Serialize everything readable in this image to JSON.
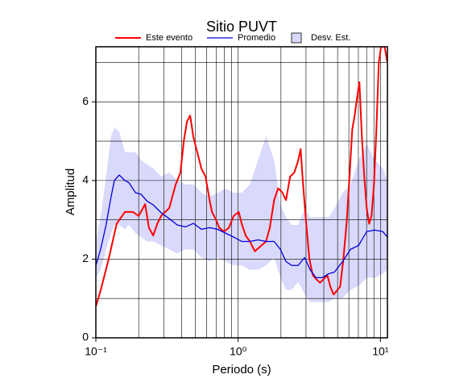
{
  "chart_data": {
    "type": "line",
    "title": "Sitio PUVT",
    "x_label": "Periodo (s)",
    "y_label": "Amplitud",
    "x_scale": "log",
    "grid": true,
    "xlim": [
      0.1,
      11.2
    ],
    "ylim": [
      0,
      7.4
    ],
    "xticks": [
      {
        "value": 0.1,
        "label": "10⁻¹"
      },
      {
        "value": 1,
        "label": "10⁰"
      },
      {
        "value": 10,
        "label": "10¹"
      }
    ],
    "minor_xticks": [
      0.2,
      0.3,
      0.4,
      0.5,
      0.6,
      0.7,
      0.8,
      0.9,
      2,
      3,
      4,
      5,
      6,
      7,
      8,
      9
    ],
    "yticks": [
      0,
      2,
      4,
      6
    ],
    "minor_yticks": [
      1,
      3,
      5,
      7
    ],
    "band": {
      "name": "Desv. Est.",
      "color": "#d9d9fb",
      "x": [
        0.1,
        0.108,
        0.118,
        0.128,
        0.135,
        0.146,
        0.16,
        0.171,
        0.19,
        0.208,
        0.228,
        0.253,
        0.288,
        0.328,
        0.373,
        0.426,
        0.485,
        0.552,
        0.63,
        0.717,
        0.817,
        0.931,
        1.06,
        1.21,
        1.38,
        1.57,
        1.79,
        1.98,
        2.17,
        2.38,
        2.64,
        2.93,
        3.21,
        3.52,
        3.91,
        4.34,
        4.75,
        5.42,
        6.17,
        7.03,
        8.01,
        9.13,
        10.4,
        11.2
      ],
      "upper": [
        2.45,
        3.07,
        4.1,
        5.13,
        5.34,
        5.24,
        4.72,
        4.72,
        4.72,
        4.52,
        4.41,
        4.31,
        4.1,
        4.21,
        4.0,
        3.9,
        3.9,
        3.69,
        3.59,
        3.69,
        3.79,
        3.69,
        3.69,
        3.9,
        4.52,
        5.13,
        4.52,
        3.38,
        3.07,
        2.87,
        2.87,
        3.28,
        3.07,
        3.07,
        3.07,
        3.07,
        3.28,
        3.69,
        3.9,
        4.52,
        4.93,
        4.52,
        4.31,
        4.0
      ],
      "lower": [
        1.53,
        1.73,
        2.25,
        2.66,
        2.87,
        2.87,
        2.76,
        2.87,
        2.66,
        2.56,
        2.45,
        2.45,
        2.35,
        2.25,
        2.14,
        2.25,
        2.25,
        2.04,
        1.94,
        2.04,
        1.94,
        1.84,
        1.84,
        1.73,
        1.73,
        1.84,
        2.04,
        1.53,
        1.22,
        1.22,
        1.42,
        1.11,
        0.91,
        0.91,
        0.91,
        0.91,
        1.01,
        1.01,
        1.22,
        1.32,
        1.53,
        1.53,
        1.63,
        1.73
      ]
    },
    "series": [
      {
        "name": "Este evento",
        "color": "#ff0000",
        "width": 2,
        "x": [
          0.1,
          0.108,
          0.123,
          0.14,
          0.16,
          0.182,
          0.2,
          0.222,
          0.236,
          0.253,
          0.27,
          0.288,
          0.328,
          0.364,
          0.393,
          0.415,
          0.437,
          0.46,
          0.485,
          0.518,
          0.552,
          0.59,
          0.63,
          0.655,
          0.699,
          0.736,
          0.796,
          0.861,
          0.931,
          1.01,
          1.06,
          1.13,
          1.21,
          1.31,
          1.41,
          1.57,
          1.67,
          1.79,
          1.91,
          2.04,
          2.17,
          2.32,
          2.48,
          2.64,
          2.75,
          2.86,
          3.01,
          3.17,
          3.34,
          3.52,
          3.76,
          4.01,
          4.23,
          4.45,
          4.69,
          4.94,
          5.21,
          5.49,
          5.78,
          6.09,
          6.34,
          6.59,
          6.85,
          7.12,
          7.41,
          7.7,
          8.01,
          8.33,
          8.66,
          9.01,
          9.37,
          9.74,
          10.1,
          10.7,
          11.2
        ],
        "values": [
          0.8,
          1.2,
          2.0,
          2.9,
          3.2,
          3.2,
          3.1,
          3.4,
          2.8,
          2.6,
          2.9,
          3.1,
          3.3,
          3.9,
          4.2,
          5.0,
          5.5,
          5.65,
          5.1,
          4.7,
          4.3,
          4.1,
          3.5,
          3.2,
          3.0,
          2.8,
          2.7,
          2.8,
          3.1,
          3.2,
          2.9,
          2.6,
          2.45,
          2.2,
          2.3,
          2.45,
          2.8,
          3.5,
          3.8,
          3.7,
          3.5,
          4.1,
          4.2,
          4.5,
          4.8,
          3.9,
          2.9,
          2.0,
          1.6,
          1.5,
          1.4,
          1.5,
          1.6,
          1.3,
          1.1,
          1.2,
          1.3,
          2.0,
          2.9,
          4.2,
          5.3,
          5.65,
          6.1,
          6.5,
          5.1,
          4.1,
          3.3,
          2.9,
          3.1,
          3.9,
          5.3,
          7.0,
          7.4,
          7.4,
          7.0
        ]
      },
      {
        "name": "Promedio",
        "color": "#0000dd",
        "width": 1.3,
        "x": [
          0.1,
          0.108,
          0.118,
          0.128,
          0.135,
          0.146,
          0.16,
          0.171,
          0.19,
          0.208,
          0.228,
          0.253,
          0.288,
          0.328,
          0.373,
          0.426,
          0.485,
          0.552,
          0.63,
          0.717,
          0.817,
          0.931,
          1.06,
          1.21,
          1.38,
          1.57,
          1.79,
          1.98,
          2.17,
          2.38,
          2.64,
          2.93,
          3.21,
          3.52,
          3.91,
          4.34,
          4.75,
          5.42,
          6.17,
          7.03,
          8.01,
          9.13,
          10.4,
          11.2
        ],
        "values": [
          1.84,
          2.25,
          2.87,
          3.59,
          4.0,
          4.14,
          4.0,
          3.94,
          3.69,
          3.65,
          3.48,
          3.38,
          3.18,
          3.03,
          2.87,
          2.82,
          2.91,
          2.76,
          2.8,
          2.76,
          2.66,
          2.56,
          2.45,
          2.45,
          2.49,
          2.45,
          2.45,
          2.25,
          1.94,
          1.84,
          1.84,
          2.04,
          1.73,
          1.53,
          1.53,
          1.63,
          1.67,
          1.94,
          2.25,
          2.35,
          2.7,
          2.74,
          2.7,
          2.56
        ]
      }
    ]
  }
}
